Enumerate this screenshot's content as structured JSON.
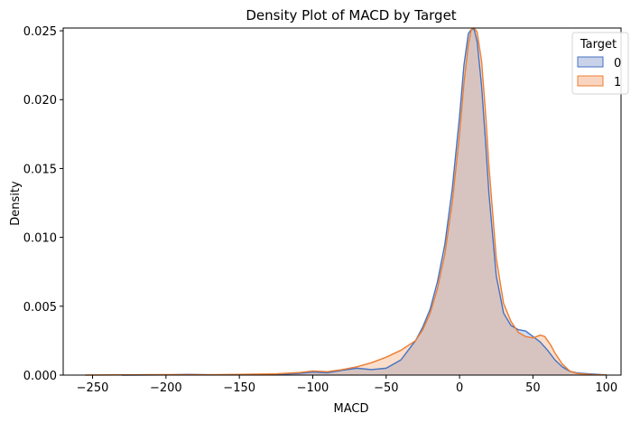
{
  "chart_data": {
    "type": "area",
    "title": "Density Plot of MACD by Target",
    "xlabel": "MACD",
    "ylabel": "Density",
    "xlim": [
      -270,
      110
    ],
    "ylim": [
      0,
      0.0252
    ],
    "xticks": [
      -250,
      -200,
      -150,
      -100,
      -50,
      0,
      50,
      100
    ],
    "xtick_labels": [
      "−250",
      "−200",
      "−150",
      "−100",
      "−50",
      "0",
      "50",
      "100"
    ],
    "yticks": [
      0,
      0.005,
      0.01,
      0.015,
      0.02,
      0.025
    ],
    "ytick_labels": [
      "0.000",
      "0.005",
      "0.010",
      "0.015",
      "0.020",
      "0.025"
    ],
    "grid": false,
    "legend": {
      "title": "Target",
      "placement": "top-right"
    },
    "series": [
      {
        "name": "0",
        "color": "#4472c4",
        "fill": "#c8d2e8",
        "x": [
          -230,
          -200,
          -185,
          -170,
          -150,
          -125,
          -110,
          -100,
          -90,
          -80,
          -70,
          -60,
          -50,
          -40,
          -30,
          -25,
          -20,
          -15,
          -10,
          -5,
          0,
          3,
          6,
          8,
          10,
          12,
          15,
          18,
          20,
          25,
          30,
          35,
          40,
          45,
          50,
          55,
          60,
          65,
          70,
          75,
          80,
          90,
          100
        ],
        "values": [
          0,
          1e-05,
          5e-05,
          2e-05,
          1e-05,
          4e-05,
          0.00012,
          0.00022,
          0.00017,
          0.00035,
          0.0005,
          0.0004,
          0.0005,
          0.0011,
          0.0025,
          0.0035,
          0.0048,
          0.0068,
          0.0095,
          0.0135,
          0.0188,
          0.0225,
          0.0248,
          0.0251,
          0.0251,
          0.0242,
          0.021,
          0.0165,
          0.0132,
          0.0072,
          0.0045,
          0.0036,
          0.0033,
          0.0032,
          0.0028,
          0.0024,
          0.0018,
          0.0011,
          0.0006,
          0.00028,
          0.00016,
          8e-05,
          1e-05
        ]
      },
      {
        "name": "1",
        "color": "#ed7d31",
        "fill": "#f9d5c0",
        "x": [
          -255,
          -230,
          -200,
          -170,
          -150,
          -125,
          -110,
          -100,
          -90,
          -80,
          -70,
          -60,
          -50,
          -40,
          -30,
          -25,
          -20,
          -15,
          -10,
          -5,
          0,
          3,
          6,
          8,
          10,
          12,
          15,
          18,
          20,
          25,
          30,
          35,
          40,
          45,
          50,
          55,
          58,
          62,
          65,
          70,
          75,
          80,
          90,
          100
        ],
        "values": [
          0,
          2e-05,
          4e-05,
          3e-05,
          5e-05,
          9e-05,
          0.00018,
          0.0003,
          0.00025,
          0.0004,
          0.0006,
          0.0009,
          0.0013,
          0.0018,
          0.0025,
          0.0033,
          0.0045,
          0.0063,
          0.0088,
          0.0125,
          0.0175,
          0.0212,
          0.024,
          0.0251,
          0.0252,
          0.0249,
          0.0228,
          0.0186,
          0.0152,
          0.0085,
          0.0052,
          0.0039,
          0.0031,
          0.0028,
          0.0027,
          0.0029,
          0.0028,
          0.0022,
          0.0016,
          0.0008,
          0.0003,
          0.00012,
          4e-05,
          1e-05
        ]
      }
    ]
  }
}
